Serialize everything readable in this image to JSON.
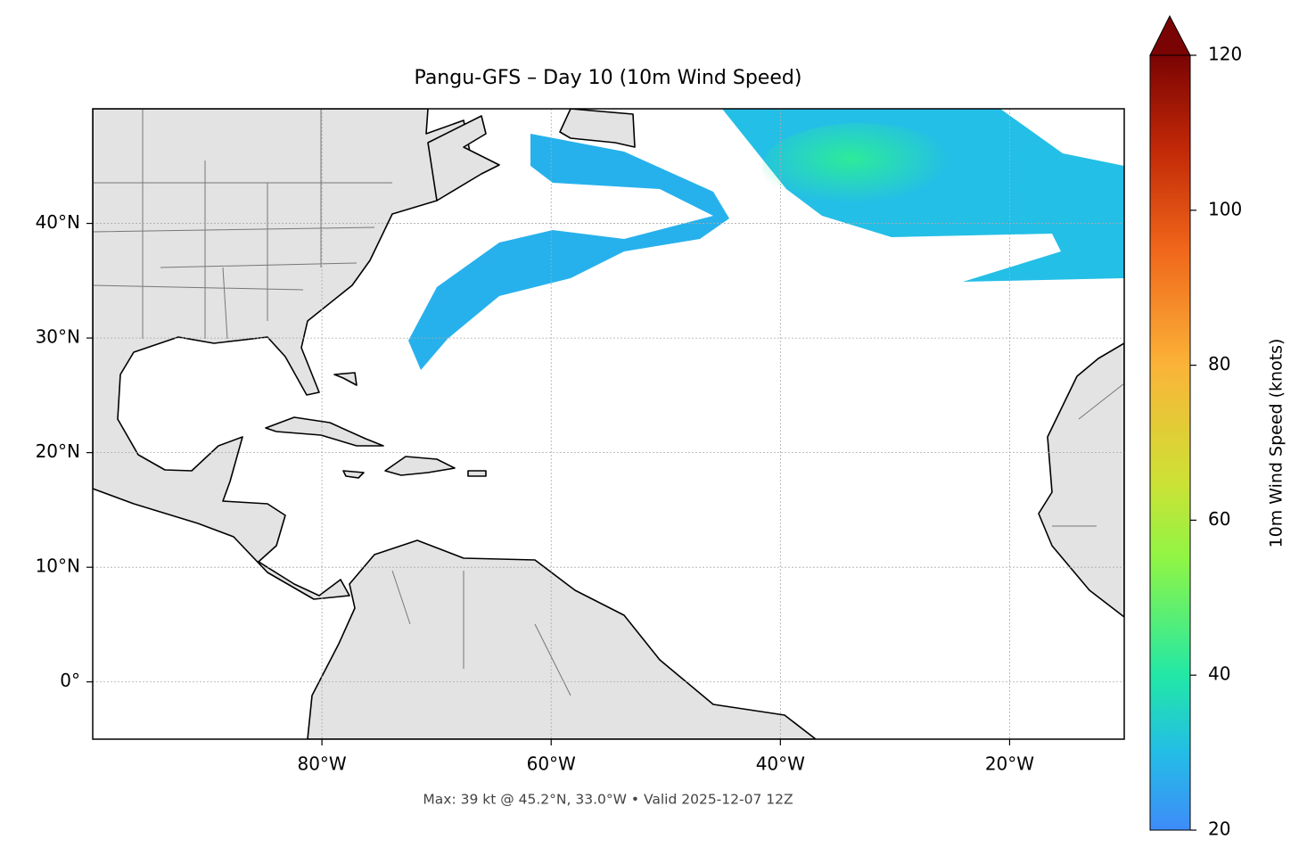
{
  "chart_data": {
    "type": "map",
    "title": "Pangu-GFS – Day 10 (10m Wind Speed)",
    "xlim": [
      -100,
      -10
    ],
    "ylim": [
      -5,
      50
    ],
    "xticks": [
      {
        "value": -80,
        "label": "80°W"
      },
      {
        "value": -60,
        "label": "60°W"
      },
      {
        "value": -40,
        "label": "40°W"
      },
      {
        "value": -20,
        "label": "20°W"
      }
    ],
    "yticks": [
      {
        "value": 0,
        "label": "0°"
      },
      {
        "value": 10,
        "label": "10°N"
      },
      {
        "value": 20,
        "label": "20°N"
      },
      {
        "value": 30,
        "label": "30°N"
      },
      {
        "value": 40,
        "label": "40°N"
      }
    ],
    "grid": true,
    "colorbar": {
      "label": "10m Wind Speed (knots)",
      "lim": [
        20,
        120
      ],
      "ticks": [
        20,
        40,
        60,
        80,
        100,
        120
      ]
    },
    "footer": "Max: 39 kt @ 45.2°N, 33.0°W • Valid 2025-12-07 12Z"
  }
}
